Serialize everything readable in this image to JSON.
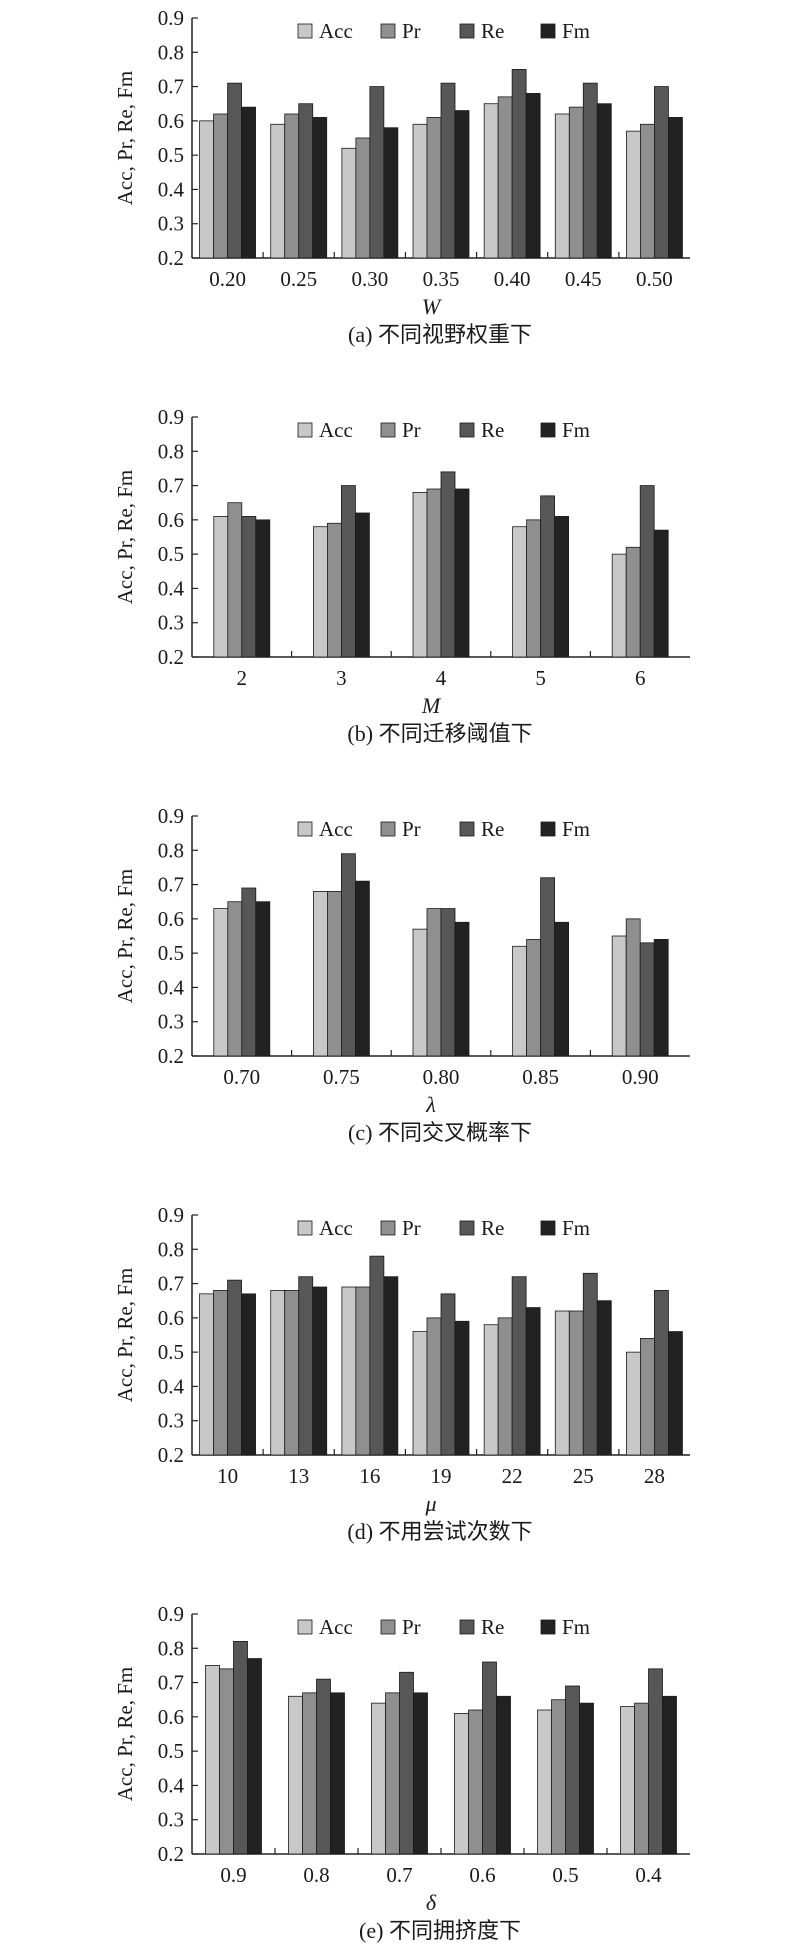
{
  "ylabel": "Acc, Pr, Re, Fm",
  "legend": [
    "Acc",
    "Pr",
    "Re",
    "Fm"
  ],
  "colors": {
    "Acc": "#c8c8c8",
    "Pr": "#8f8f8f",
    "Re": "#575757",
    "Fm": "#222222"
  },
  "chart_data": [
    {
      "type": "bar",
      "caption": "(a) 不同视野权重下",
      "xlabel": "W",
      "ylabel": "Acc, Pr, Re, Fm",
      "ylim": [
        0.2,
        0.9
      ],
      "yticks": [
        "0.2",
        "0.3",
        "0.4",
        "0.5",
        "0.6",
        "0.7",
        "0.8",
        "0.9"
      ],
      "categories": [
        "0.20",
        "0.25",
        "0.30",
        "0.35",
        "0.40",
        "0.45",
        "0.50"
      ],
      "legend_position": "top-right",
      "series": [
        {
          "name": "Acc",
          "values": [
            0.6,
            0.59,
            0.52,
            0.59,
            0.65,
            0.62,
            0.57
          ]
        },
        {
          "name": "Pr",
          "values": [
            0.62,
            0.62,
            0.55,
            0.61,
            0.67,
            0.64,
            0.59
          ]
        },
        {
          "name": "Re",
          "values": [
            0.71,
            0.65,
            0.7,
            0.71,
            0.75,
            0.71,
            0.7
          ]
        },
        {
          "name": "Fm",
          "values": [
            0.64,
            0.61,
            0.58,
            0.63,
            0.68,
            0.65,
            0.61
          ]
        }
      ]
    },
    {
      "type": "bar",
      "caption": "(b) 不同迁移阈值下",
      "xlabel": "M",
      "ylabel": "Acc, Pr, Re, Fm",
      "ylim": [
        0.2,
        0.9
      ],
      "yticks": [
        "0.2",
        "0.3",
        "0.4",
        "0.5",
        "0.6",
        "0.7",
        "0.8",
        "0.9"
      ],
      "categories": [
        "2",
        "3",
        "4",
        "5",
        "6"
      ],
      "legend_position": "top-right",
      "series": [
        {
          "name": "Acc",
          "values": [
            0.61,
            0.58,
            0.68,
            0.58,
            0.5
          ]
        },
        {
          "name": "Pr",
          "values": [
            0.65,
            0.59,
            0.69,
            0.6,
            0.52
          ]
        },
        {
          "name": "Re",
          "values": [
            0.61,
            0.7,
            0.74,
            0.67,
            0.7
          ]
        },
        {
          "name": "Fm",
          "values": [
            0.6,
            0.62,
            0.69,
            0.61,
            0.57
          ]
        }
      ]
    },
    {
      "type": "bar",
      "caption": "(c) 不同交叉概率下",
      "xlabel": "λ",
      "ylabel": "Acc, Pr, Re, Fm",
      "ylim": [
        0.2,
        0.9
      ],
      "yticks": [
        "0.2",
        "0.3",
        "0.4",
        "0.5",
        "0.6",
        "0.7",
        "0.8",
        "0.9"
      ],
      "categories": [
        "0.70",
        "0.75",
        "0.80",
        "0.85",
        "0.90"
      ],
      "legend_position": "top-right",
      "series": [
        {
          "name": "Acc",
          "values": [
            0.63,
            0.68,
            0.57,
            0.52,
            0.55
          ]
        },
        {
          "name": "Pr",
          "values": [
            0.65,
            0.68,
            0.63,
            0.54,
            0.6
          ]
        },
        {
          "name": "Re",
          "values": [
            0.69,
            0.79,
            0.63,
            0.72,
            0.53
          ]
        },
        {
          "name": "Fm",
          "values": [
            0.65,
            0.71,
            0.59,
            0.59,
            0.54
          ]
        }
      ]
    },
    {
      "type": "bar",
      "caption": "(d) 不用尝试次数下",
      "xlabel": "μ",
      "ylabel": "Acc, Pr, Re, Fm",
      "ylim": [
        0.2,
        0.9
      ],
      "yticks": [
        "0.2",
        "0.3",
        "0.4",
        "0.5",
        "0.6",
        "0.7",
        "0.8",
        "0.9"
      ],
      "categories": [
        "10",
        "13",
        "16",
        "19",
        "22",
        "25",
        "28"
      ],
      "legend_position": "top-right",
      "series": [
        {
          "name": "Acc",
          "values": [
            0.67,
            0.68,
            0.69,
            0.56,
            0.58,
            0.62,
            0.5
          ]
        },
        {
          "name": "Pr",
          "values": [
            0.68,
            0.68,
            0.69,
            0.6,
            0.6,
            0.62,
            0.54
          ]
        },
        {
          "name": "Re",
          "values": [
            0.71,
            0.72,
            0.78,
            0.67,
            0.72,
            0.73,
            0.68
          ]
        },
        {
          "name": "Fm",
          "values": [
            0.67,
            0.69,
            0.72,
            0.59,
            0.63,
            0.65,
            0.56
          ]
        }
      ]
    },
    {
      "type": "bar",
      "caption": "(e) 不同拥挤度下",
      "xlabel": "δ",
      "ylabel": "Acc, Pr, Re, Fm",
      "ylim": [
        0.2,
        0.9
      ],
      "yticks": [
        "0.2",
        "0.3",
        "0.4",
        "0.5",
        "0.6",
        "0.7",
        "0.8",
        "0.9"
      ],
      "categories": [
        "0.9",
        "0.8",
        "0.7",
        "0.6",
        "0.5",
        "0.4"
      ],
      "legend_position": "top-right",
      "series": [
        {
          "name": "Acc",
          "values": [
            0.75,
            0.66,
            0.64,
            0.61,
            0.62,
            0.63
          ]
        },
        {
          "name": "Pr",
          "values": [
            0.74,
            0.67,
            0.67,
            0.62,
            0.65,
            0.64
          ]
        },
        {
          "name": "Re",
          "values": [
            0.82,
            0.71,
            0.73,
            0.76,
            0.69,
            0.74
          ]
        },
        {
          "name": "Fm",
          "values": [
            0.77,
            0.67,
            0.67,
            0.66,
            0.64,
            0.66
          ]
        }
      ]
    }
  ]
}
